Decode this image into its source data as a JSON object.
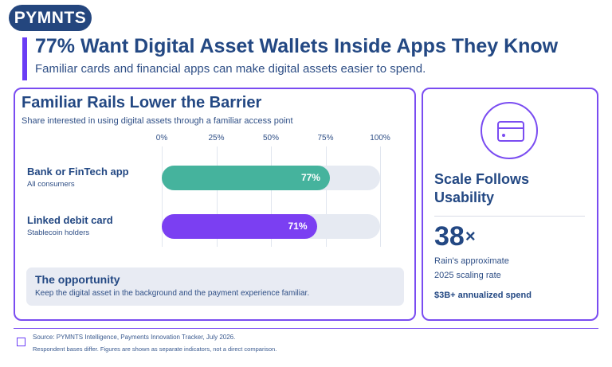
{
  "brand": {
    "name": "PYMNTS"
  },
  "headline": {
    "title": "77% Want Digital Asset Wallets Inside Apps They Know",
    "subtitle": "Familiar cards and financial apps can make digital assets easier to spend."
  },
  "chart_panel": {
    "title": "Familiar Rails Lower the Barrier",
    "subtitle": "Share interested in using digital assets through a familiar access point"
  },
  "chart_data": {
    "type": "bar",
    "orientation": "horizontal",
    "title": "Familiar Rails Lower the Barrier",
    "subtitle": "Share interested in using digital assets through a familiar access point",
    "xlim": [
      0,
      100
    ],
    "ticks": [
      "0%",
      "25%",
      "50%",
      "75%",
      "100%"
    ],
    "tick_values": [
      0,
      25,
      50,
      75,
      100
    ],
    "grid": true,
    "categories": [
      "Bank or FinTech app",
      "Linked debit card"
    ],
    "category_subtitles": [
      "All consumers",
      "Stablecoin holders"
    ],
    "values": [
      77,
      71
    ],
    "value_labels": [
      "77%",
      "71%"
    ],
    "bar_colors": [
      "#45b39d",
      "#7b3ff2"
    ],
    "track_color": "#e6eaf2"
  },
  "callout": {
    "title": "The opportunity",
    "text": "Keep the digital asset in the background and the payment experience familiar."
  },
  "side_panel": {
    "icon": "card-icon",
    "heading": "Scale Follows Usability",
    "metric": "38",
    "metric_unit": "×",
    "metric_caption_1": "Rain's approximate",
    "metric_caption_2": "2025 scaling rate",
    "spend": "$3B+ annualized spend"
  },
  "footer": {
    "source": "Source: PYMNTS Intelligence, Payments Innovation Tracker, July 2026.",
    "note": "Respondent bases differ. Figures are shown as separate indicators, not a direct comparison."
  },
  "colors": {
    "navy": "#24467e",
    "accent": "#7a4cf1",
    "teal": "#45b39d",
    "purple": "#7b3ff2"
  }
}
